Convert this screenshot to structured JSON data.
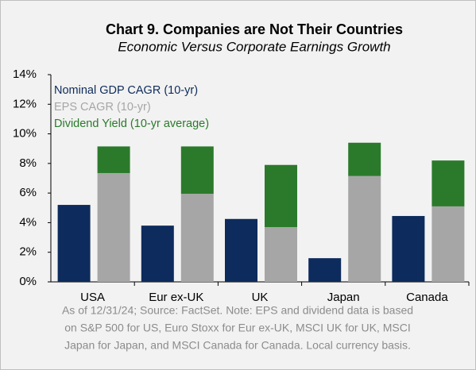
{
  "chart_data": {
    "type": "bar",
    "stacked": true,
    "title": "Chart 9. Companies are Not Their Countries",
    "subtitle": "Economic Versus Corporate Earnings Growth",
    "categories": [
      "USA",
      "Eur ex-UK",
      "UK",
      "Japan",
      "Canada"
    ],
    "series": [
      {
        "name": "Nominal GDP CAGR (10-yr)",
        "color": "#0d2b5c",
        "values": [
          5.2,
          3.8,
          4.25,
          1.6,
          4.45
        ],
        "stack": "gdp"
      },
      {
        "name": "EPS CAGR (10-yr)",
        "color": "#a6a6a6",
        "values": [
          7.35,
          5.95,
          3.7,
          7.15,
          5.1
        ],
        "stack": "eps"
      },
      {
        "name": "Dividend Yield (10-yr average)",
        "color": "#2b7a2b",
        "values": [
          1.8,
          3.2,
          4.2,
          2.25,
          3.1
        ],
        "stack": "eps"
      }
    ],
    "ylim": [
      0,
      14
    ],
    "yticks": [
      {
        "value": 0,
        "label": "0%"
      },
      {
        "value": 2,
        "label": "2%"
      },
      {
        "value": 4,
        "label": "4%"
      },
      {
        "value": 6,
        "label": "6%"
      },
      {
        "value": 8,
        "label": "8%"
      },
      {
        "value": 10,
        "label": "10%"
      },
      {
        "value": 12,
        "label": "12%"
      },
      {
        "value": 14,
        "label": "14%"
      }
    ],
    "grid": false,
    "legend": "top-left",
    "note": [
      "As of 12/31/24; Source: FactSet. Note: EPS and dividend data is based",
      "on S&P 500 for US, Euro Stoxx for Eur ex-UK, MSCI UK for UK, MSCI",
      "Japan for Japan, and MSCI Canada for Canada. Local currency basis."
    ]
  }
}
